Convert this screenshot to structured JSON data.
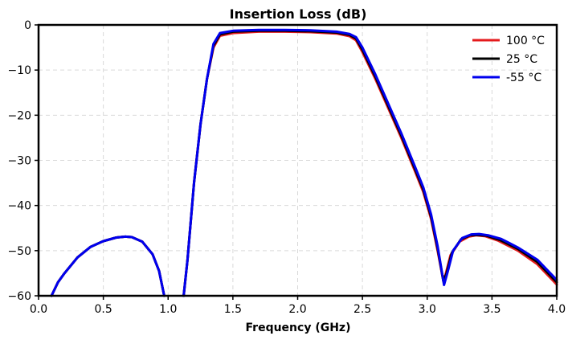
{
  "chart_data": {
    "type": "line",
    "title": "Insertion Loss (dB)",
    "xlabel": "Frequency (GHz)",
    "ylabel": "",
    "xlim": [
      0.0,
      4.0
    ],
    "ylim": [
      -60,
      0
    ],
    "xticks": [
      0.0,
      0.5,
      1.0,
      1.5,
      2.0,
      2.5,
      3.0,
      3.5,
      4.0
    ],
    "xtick_labels": [
      "0.0",
      "0.5",
      "1.0",
      "1.5",
      "2.0",
      "2.5",
      "3.0",
      "3.5",
      "4.0"
    ],
    "yticks": [
      0,
      -10,
      -20,
      -30,
      -40,
      -50,
      -60
    ],
    "ytick_labels": [
      "0",
      "−10",
      "−20",
      "−30",
      "−40",
      "−50",
      "−60"
    ],
    "grid": true,
    "legend_position": "top-right",
    "series": [
      {
        "name": "100 °C",
        "color": "#e41a1c",
        "segments": [
          [
            [
              0.1,
              -60
            ],
            [
              0.15,
              -57
            ],
            [
              0.2,
              -55
            ],
            [
              0.3,
              -51.5
            ],
            [
              0.4,
              -49.2
            ],
            [
              0.5,
              -47.9
            ],
            [
              0.6,
              -47.1
            ],
            [
              0.67,
              -46.9
            ],
            [
              0.72,
              -47.0
            ],
            [
              0.8,
              -48.0
            ],
            [
              0.88,
              -50.8
            ],
            [
              0.93,
              -54.5
            ],
            [
              0.97,
              -60
            ]
          ],
          [
            [
              1.12,
              -60
            ],
            [
              1.15,
              -52
            ],
            [
              1.2,
              -35
            ],
            [
              1.25,
              -22
            ],
            [
              1.3,
              -12
            ],
            [
              1.35,
              -5
            ],
            [
              1.4,
              -2.4
            ],
            [
              1.5,
              -1.8
            ],
            [
              1.7,
              -1.5
            ],
            [
              1.9,
              -1.5
            ],
            [
              2.1,
              -1.6
            ],
            [
              2.3,
              -1.9
            ],
            [
              2.4,
              -2.5
            ],
            [
              2.45,
              -3.4
            ],
            [
              2.5,
              -6
            ],
            [
              2.6,
              -12
            ],
            [
              2.7,
              -18.5
            ],
            [
              2.8,
              -25
            ],
            [
              2.9,
              -32
            ],
            [
              2.97,
              -37
            ],
            [
              3.03,
              -43
            ],
            [
              3.08,
              -50
            ],
            [
              3.12,
              -56
            ],
            [
              3.14,
              -55.5
            ],
            [
              3.18,
              -51
            ],
            [
              3.25,
              -48
            ],
            [
              3.32,
              -46.9
            ],
            [
              3.38,
              -46.6
            ],
            [
              3.45,
              -46.8
            ],
            [
              3.55,
              -47.8
            ],
            [
              3.7,
              -50
            ],
            [
              3.85,
              -53
            ],
            [
              4.0,
              -57.5
            ]
          ]
        ]
      },
      {
        "name": "25 °C",
        "color": "#000000",
        "segments": [
          [
            [
              0.1,
              -60
            ],
            [
              0.15,
              -57
            ],
            [
              0.2,
              -55
            ],
            [
              0.3,
              -51.5
            ],
            [
              0.4,
              -49.2
            ],
            [
              0.5,
              -47.9
            ],
            [
              0.6,
              -47.1
            ],
            [
              0.67,
              -46.9
            ],
            [
              0.72,
              -47.0
            ],
            [
              0.8,
              -48.0
            ],
            [
              0.88,
              -50.8
            ],
            [
              0.93,
              -54.5
            ],
            [
              0.97,
              -60
            ]
          ],
          [
            [
              1.12,
              -60
            ],
            [
              1.15,
              -52
            ],
            [
              1.2,
              -35
            ],
            [
              1.25,
              -22
            ],
            [
              1.3,
              -12
            ],
            [
              1.35,
              -4.6
            ],
            [
              1.4,
              -2.1
            ],
            [
              1.5,
              -1.5
            ],
            [
              1.7,
              -1.3
            ],
            [
              1.9,
              -1.3
            ],
            [
              2.1,
              -1.4
            ],
            [
              2.3,
              -1.7
            ],
            [
              2.4,
              -2.2
            ],
            [
              2.45,
              -3.0
            ],
            [
              2.5,
              -5.5
            ],
            [
              2.6,
              -11.5
            ],
            [
              2.7,
              -18
            ],
            [
              2.8,
              -24.5
            ],
            [
              2.9,
              -31.5
            ],
            [
              2.97,
              -36.5
            ],
            [
              3.03,
              -42.5
            ],
            [
              3.08,
              -49.5
            ],
            [
              3.125,
              -56.8
            ],
            [
              3.15,
              -55
            ],
            [
              3.19,
              -50.5
            ],
            [
              3.26,
              -47.5
            ],
            [
              3.33,
              -46.6
            ],
            [
              3.39,
              -46.5
            ],
            [
              3.46,
              -46.7
            ],
            [
              3.56,
              -47.6
            ],
            [
              3.7,
              -49.6
            ],
            [
              3.85,
              -52.5
            ],
            [
              4.0,
              -57
            ]
          ]
        ]
      },
      {
        "name": "-55 °C",
        "color": "#0000ee",
        "segments": [
          [
            [
              0.1,
              -60
            ],
            [
              0.15,
              -57
            ],
            [
              0.2,
              -55
            ],
            [
              0.3,
              -51.5
            ],
            [
              0.4,
              -49.2
            ],
            [
              0.5,
              -47.9
            ],
            [
              0.6,
              -47.1
            ],
            [
              0.67,
              -46.9
            ],
            [
              0.72,
              -47.0
            ],
            [
              0.8,
              -48.0
            ],
            [
              0.88,
              -50.8
            ],
            [
              0.93,
              -54.5
            ],
            [
              0.97,
              -60
            ]
          ],
          [
            [
              1.12,
              -60
            ],
            [
              1.15,
              -52
            ],
            [
              1.2,
              -35
            ],
            [
              1.25,
              -22
            ],
            [
              1.3,
              -12
            ],
            [
              1.35,
              -4.2
            ],
            [
              1.4,
              -1.8
            ],
            [
              1.5,
              -1.3
            ],
            [
              1.7,
              -1.1
            ],
            [
              1.9,
              -1.1
            ],
            [
              2.1,
              -1.2
            ],
            [
              2.3,
              -1.5
            ],
            [
              2.4,
              -2.0
            ],
            [
              2.45,
              -2.7
            ],
            [
              2.5,
              -5
            ],
            [
              2.6,
              -11
            ],
            [
              2.7,
              -17.5
            ],
            [
              2.8,
              -24
            ],
            [
              2.9,
              -31
            ],
            [
              2.97,
              -36
            ],
            [
              3.03,
              -42
            ],
            [
              3.08,
              -49
            ],
            [
              3.13,
              -57.6
            ],
            [
              3.16,
              -54.5
            ],
            [
              3.2,
              -50
            ],
            [
              3.27,
              -47.2
            ],
            [
              3.34,
              -46.4
            ],
            [
              3.4,
              -46.3
            ],
            [
              3.47,
              -46.6
            ],
            [
              3.57,
              -47.4
            ],
            [
              3.7,
              -49.3
            ],
            [
              3.85,
              -52
            ],
            [
              4.0,
              -56.5
            ]
          ]
        ]
      }
    ]
  }
}
